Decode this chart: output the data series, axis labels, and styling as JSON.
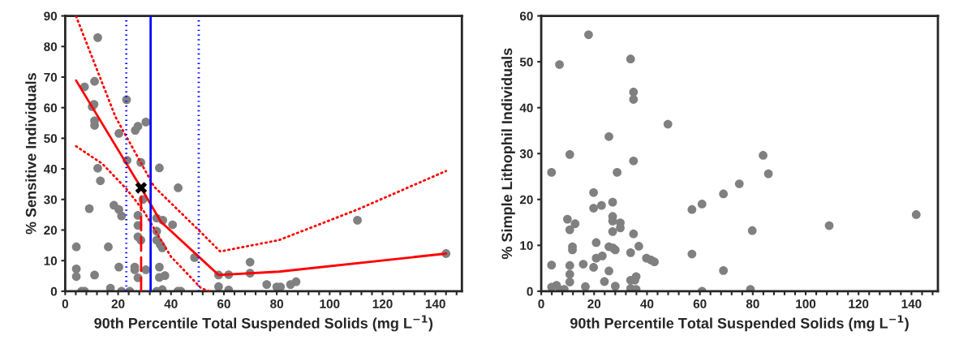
{
  "chart_data": [
    {
      "type": "scatter",
      "xlabel": "90th Percentile Total Suspended Solids (mg L$^{−1}$)",
      "ylabel": "% Sensitive Individuals",
      "xlim": [
        0,
        150
      ],
      "ylim": [
        0,
        90
      ],
      "xticks": [
        0,
        {
          "value": 4,
          "label": null
        },
        {
          "value": 8,
          "label": null
        },
        {
          "value": 12,
          "label": null
        },
        {
          "value": 16,
          "label": null
        },
        20,
        {
          "value": 24,
          "label": null
        },
        {
          "value": 28,
          "label": null
        },
        {
          "value": 32,
          "label": null
        },
        {
          "value": 36,
          "label": null
        },
        40,
        {
          "value": 44,
          "label": null
        },
        {
          "value": 48,
          "label": null
        },
        {
          "value": 52,
          "label": null
        },
        {
          "value": 56,
          "label": null
        },
        60,
        {
          "value": 64,
          "label": null
        },
        {
          "value": 68,
          "label": null
        },
        {
          "value": 72,
          "label": null
        },
        {
          "value": 76,
          "label": null
        },
        80,
        {
          "value": 84,
          "label": null
        },
        {
          "value": 88,
          "label": null
        },
        {
          "value": 92,
          "label": null
        },
        {
          "value": 96,
          "label": null
        },
        100,
        {
          "value": 104,
          "label": null
        },
        {
          "value": 108,
          "label": null
        },
        {
          "value": 112,
          "label": null
        },
        {
          "value": 116,
          "label": null
        },
        120,
        {
          "value": 124,
          "label": null
        },
        {
          "value": 128,
          "label": null
        },
        {
          "value": 132,
          "label": null
        },
        {
          "value": 136,
          "label": null
        },
        140,
        {
          "value": 144,
          "label": null
        },
        {
          "value": 148,
          "label": null
        }
      ],
      "yticks": [
        0,
        10,
        20,
        30,
        40,
        50,
        60,
        70,
        80,
        90
      ],
      "grid": false,
      "legend": false,
      "ref_lines": [
        {
          "axis": "x",
          "value": 32.3,
          "color": "#0000ff",
          "line_style": "solid"
        },
        {
          "axis": "x",
          "value": 23.1,
          "color": "#0000ff",
          "line_style": "dotted"
        },
        {
          "axis": "x",
          "value": 50.5,
          "color": "#0000ff",
          "line_style": "dotted"
        }
      ],
      "series": [
        {
          "type": "scatter",
          "color": "#808080",
          "marker": "circle",
          "x": [
            12.3,
            7.3,
            11.1,
            10.9,
            10.2,
            11.1,
            11.1,
            23.2,
            30.5,
            27.5,
            26.5,
            20.3,
            23.4,
            28.6,
            35.6,
            12.3,
            13.3,
            42.7,
            29.4,
            9.1,
            18.4,
            20.3,
            21.3,
            27.5,
            34.6,
            36.9,
            40.6,
            27.5,
            34.6,
            27.5,
            28.6,
            34.6,
            35.9,
            36.7,
            4.2,
            16.3,
            48.9,
            4.2,
            4.2,
            11.1,
            20.3,
            26.3,
            26.3,
            30.5,
            35.6,
            27.5,
            35.6,
            37.7,
            6.2,
            7.3,
            17.1,
            21.3,
            24.4,
            34.6,
            36.7,
            42.6,
            43.7,
            58.0,
            61.8,
            58.0,
            61.8,
            69.9,
            69.9,
            76.2,
            80.0,
            81.4,
            85.2,
            87.3,
            110.5,
            144
          ],
          "values": [
            82.9,
            66.8,
            68.6,
            61.1,
            60.3,
            55.7,
            54.2,
            62.6,
            55.3,
            53.9,
            52.6,
            51.6,
            42.8,
            42.1,
            40.3,
            40.2,
            36.1,
            33.8,
            30.0,
            27.0,
            28.1,
            26.7,
            24.6,
            24.8,
            23.9,
            23.2,
            21.7,
            21.5,
            19.6,
            17.8,
            16.7,
            16.7,
            15.3,
            14.2,
            14.5,
            14.5,
            11.0,
            7.3,
            4.8,
            5.3,
            7.9,
            7.9,
            7.0,
            7.0,
            7.9,
            4.4,
            4.5,
            5.1,
            0,
            0,
            1.0,
            0,
            0,
            0,
            0.5,
            0,
            0,
            5.3,
            5.4,
            1.5,
            0.4,
            9.5,
            5.9,
            2.2,
            1.4,
            1.4,
            2.2,
            3.1,
            23.2,
            12.3
          ]
        },
        {
          "type": "line",
          "color": "#ff0000",
          "line_style": "solid",
          "marker": "none",
          "x": [
            4.1,
            28.7,
            36.1,
            58.0,
            80.8,
            144
          ],
          "values": [
            68.9,
            33.8,
            22.8,
            5.3,
            6.4,
            12.3
          ]
        },
        {
          "type": "line",
          "color": "#ff0000",
          "line_style": "dotted",
          "marker": "none",
          "x": [
            4.1,
            19,
            33.6,
            50.2,
            58.6,
            80.8,
            110.5,
            144
          ],
          "values": [
            89.9,
            57,
            34.2,
            20.2,
            13.0,
            16.7,
            26.7,
            39.3
          ]
        },
        {
          "type": "line",
          "color": "#ff0000",
          "line_style": "dotted",
          "marker": "none",
          "x": [
            4.1,
            14,
            23.3,
            29.6,
            39.9,
            51.5,
            54.6
          ],
          "values": [
            47.4,
            41.7,
            33.3,
            26.3,
            11.4,
            0.9,
            0
          ]
        },
        {
          "type": "line",
          "color": "#ff0000",
          "line_style": "dashed",
          "marker": "none",
          "x": [
            28.7,
            28.7
          ],
          "values": [
            0,
            33.8
          ]
        },
        {
          "type": "scatter",
          "color": "#000000",
          "marker": "cross",
          "x": [
            28.7
          ],
          "values": [
            33.8
          ]
        }
      ]
    },
    {
      "type": "scatter",
      "xlabel": "90th Percentile Total Suspended Solids (mg L$^{−1}$)",
      "ylabel": "% Simple Lithophil Individuals",
      "xlim": [
        0,
        150
      ],
      "ylim": [
        0,
        60
      ],
      "xticks": [
        0,
        {
          "value": 4,
          "label": null
        },
        {
          "value": 8,
          "label": null
        },
        {
          "value": 12,
          "label": null
        },
        {
          "value": 16,
          "label": null
        },
        20,
        {
          "value": 24,
          "label": null
        },
        {
          "value": 28,
          "label": null
        },
        {
          "value": 32,
          "label": null
        },
        {
          "value": 36,
          "label": null
        },
        40,
        {
          "value": 44,
          "label": null
        },
        {
          "value": 48,
          "label": null
        },
        {
          "value": 52,
          "label": null
        },
        {
          "value": 56,
          "label": null
        },
        60,
        {
          "value": 64,
          "label": null
        },
        {
          "value": 68,
          "label": null
        },
        {
          "value": 72,
          "label": null
        },
        {
          "value": 76,
          "label": null
        },
        80,
        {
          "value": 84,
          "label": null
        },
        {
          "value": 88,
          "label": null
        },
        {
          "value": 92,
          "label": null
        },
        {
          "value": 96,
          "label": null
        },
        100,
        {
          "value": 104,
          "label": null
        },
        {
          "value": 108,
          "label": null
        },
        {
          "value": 112,
          "label": null
        },
        {
          "value": 116,
          "label": null
        },
        120,
        {
          "value": 124,
          "label": null
        },
        {
          "value": 128,
          "label": null
        },
        {
          "value": 132,
          "label": null
        },
        {
          "value": 136,
          "label": null
        },
        140,
        {
          "value": 144,
          "label": null
        },
        {
          "value": 148,
          "label": null
        }
      ],
      "yticks": [
        0,
        10,
        20,
        30,
        40,
        50,
        60
      ],
      "grid": false,
      "legend": false,
      "series": [
        {
          "type": "scatter",
          "color": "#808080",
          "marker": "circle",
          "x": [
            17.9,
            6.9,
            33.8,
            34.9,
            34.9,
            47.9,
            25.6,
            10.8,
            3.9,
            28.7,
            34.9,
            19.8,
            19.8,
            22.8,
            27.0,
            27.0,
            27.0,
            29.9,
            29.9,
            27.0,
            9.9,
            12.8,
            10.8,
            11.8,
            11.8,
            34.9,
            36.9,
            33.8,
            20.8,
            25.6,
            27.2,
            28.0,
            20.8,
            23.1,
            39.8,
            41.5,
            42.8,
            3.9,
            10.8,
            15.9,
            19.8,
            10.8,
            25.6,
            10.8,
            23.9,
            35.9,
            33.8,
            35.4,
            3.9,
            5.8,
            7.2,
            8.7,
            16.7,
            28.0,
            33.8,
            35.9,
            83.9,
            85.9,
            74.9,
            68.9,
            57.0,
            60.8,
            79.8,
            108.9,
            141.8,
            57.0,
            68.9,
            60.8,
            79.1
          ],
          "values": [
            55.9,
            49.4,
            50.6,
            43.4,
            41.8,
            36.4,
            33.7,
            29.8,
            25.9,
            25.9,
            28.4,
            21.5,
            18.1,
            18.7,
            19.4,
            16.3,
            15.3,
            14.9,
            13.8,
            13.0,
            15.7,
            14.7,
            13.4,
            9.7,
            9.0,
            12.5,
            9.8,
            8.4,
            10.6,
            9.7,
            9.4,
            9.0,
            7.2,
            7.7,
            7.2,
            6.8,
            6.4,
            5.7,
            5.6,
            5.9,
            5.2,
            3.7,
            4.4,
            2.0,
            2.1,
            3.2,
            2.4,
            2.4,
            0.9,
            1.3,
            0.3,
            0.4,
            1.0,
            1.1,
            0.6,
            0.4,
            29.6,
            25.6,
            23.4,
            21.2,
            17.8,
            19.0,
            13.2,
            14.3,
            16.7,
            8.1,
            4.5,
            0,
            0.4
          ]
        }
      ]
    }
  ]
}
